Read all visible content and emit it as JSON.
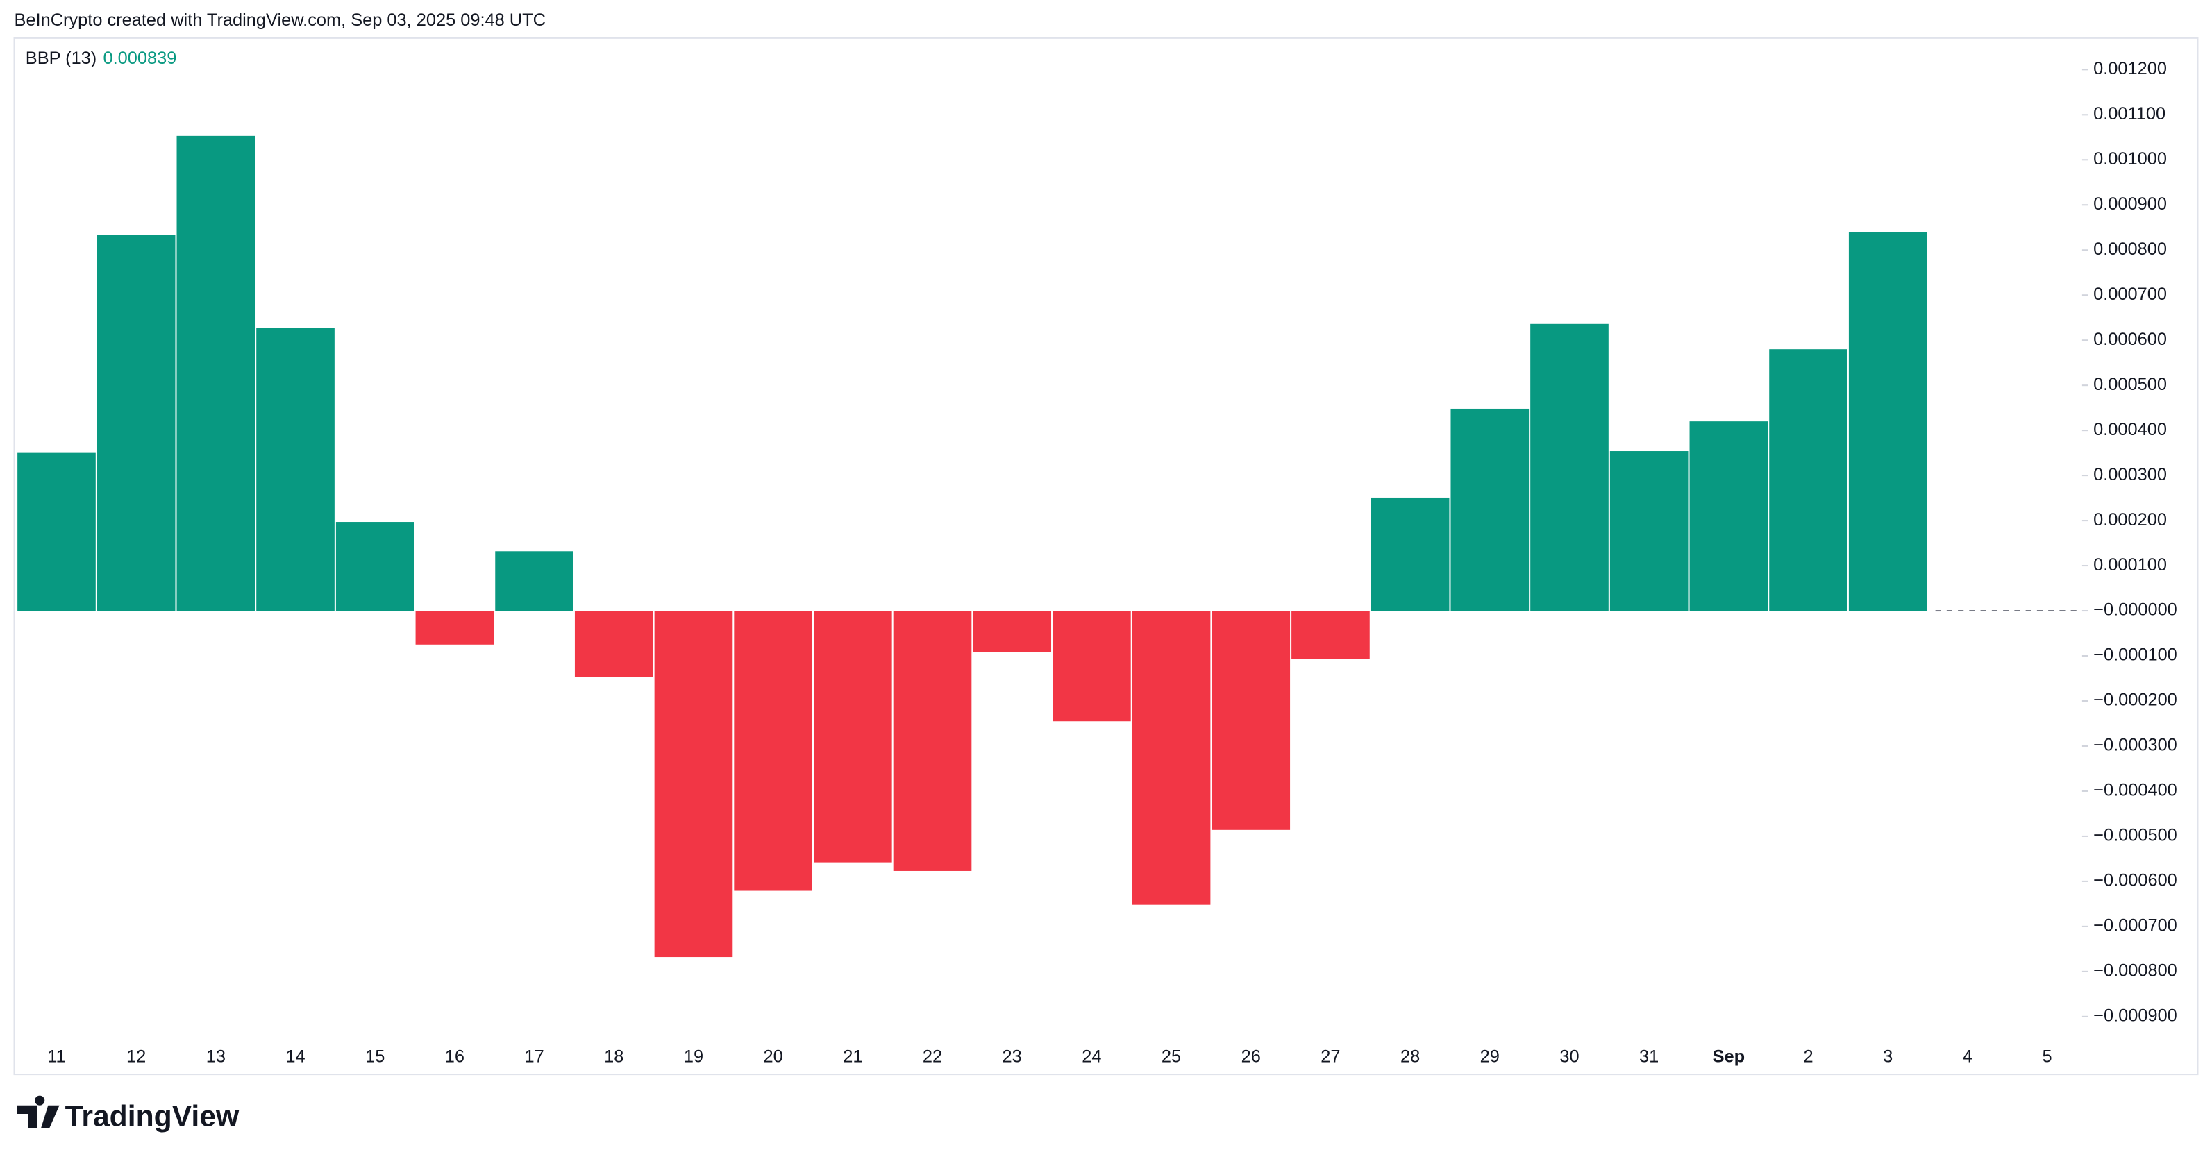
{
  "header": {
    "attribution": "BeInCrypto created with TradingView.com, Sep 03, 2025 09:48 UTC",
    "logo": "TradingView"
  },
  "chart_data": {
    "type": "bar",
    "categories": [
      "11",
      "12",
      "13",
      "14",
      "15",
      "16",
      "17",
      "18",
      "19",
      "20",
      "21",
      "22",
      "23",
      "24",
      "25",
      "26",
      "27",
      "28",
      "29",
      "30",
      "31",
      "Sep",
      "2",
      "3",
      "4",
      "5"
    ],
    "series": [
      {
        "name": "BBP (13)",
        "positive_color": "#089981",
        "negative_color": "#f23645",
        "values": [
          0.00035,
          0.000834,
          0.001053,
          0.000627,
          0.000197,
          -7.5e-05,
          0.000132,
          -0.000147,
          -0.000768,
          -0.000621,
          -0.000558,
          -0.000577,
          -9.1e-05,
          -0.000245,
          -0.000652,
          -0.000486,
          -0.000107,
          0.000251,
          0.000448,
          0.000636,
          0.000354,
          0.00042,
          0.00058,
          0.000839,
          null,
          null
        ]
      }
    ],
    "ylim": [
      -0.00095,
      0.00127
    ],
    "yticks": [
      {
        "value": 0.0012,
        "label": "0.001200"
      },
      {
        "value": 0.0011,
        "label": "0.001100"
      },
      {
        "value": 0.001,
        "label": "0.001000"
      },
      {
        "value": 0.0009,
        "label": "0.000900"
      },
      {
        "value": 0.0008,
        "label": "0.000800"
      },
      {
        "value": 0.0007,
        "label": "0.000700"
      },
      {
        "value": 0.0006,
        "label": "0.000600"
      },
      {
        "value": 0.0005,
        "label": "0.000500"
      },
      {
        "value": 0.0004,
        "label": "0.000400"
      },
      {
        "value": 0.0003,
        "label": "0.000300"
      },
      {
        "value": 0.0002,
        "label": "0.000200"
      },
      {
        "value": 0.0001,
        "label": "0.000100"
      },
      {
        "value": 0,
        "label": "−0.000000"
      },
      {
        "value": -0.0001,
        "label": "−0.000100"
      },
      {
        "value": -0.0002,
        "label": "−0.000200"
      },
      {
        "value": -0.0003,
        "label": "−0.000300"
      },
      {
        "value": -0.0004,
        "label": "−0.000400"
      },
      {
        "value": -0.0005,
        "label": "−0.000500"
      },
      {
        "value": -0.0006,
        "label": "−0.000600"
      },
      {
        "value": -0.0007,
        "label": "−0.000700"
      },
      {
        "value": -0.0008,
        "label": "−0.000800"
      },
      {
        "value": -0.0009,
        "label": "−0.000900"
      }
    ],
    "grid": false
  }
}
